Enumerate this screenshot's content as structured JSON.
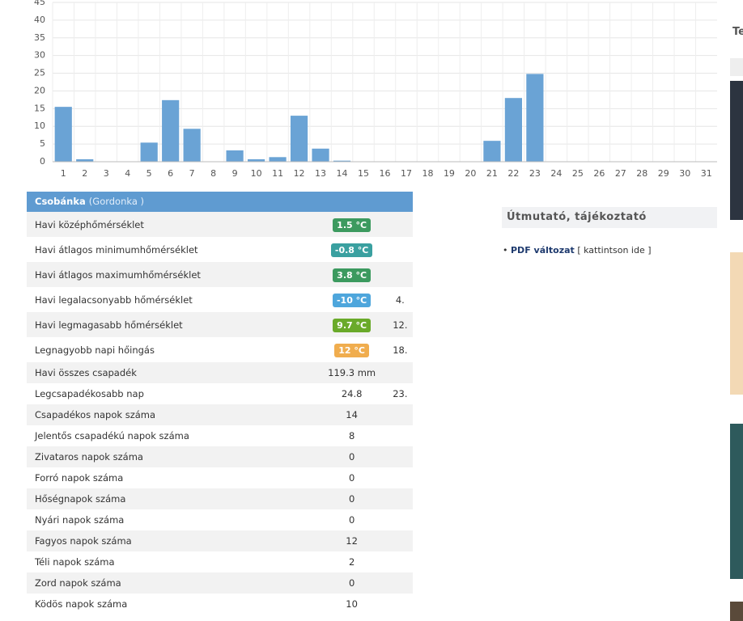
{
  "chart_data": {
    "type": "bar",
    "categories": [
      "1",
      "2",
      "3",
      "4",
      "5",
      "6",
      "7",
      "8",
      "9",
      "10",
      "11",
      "12",
      "13",
      "14",
      "15",
      "16",
      "17",
      "18",
      "19",
      "20",
      "21",
      "22",
      "23",
      "24",
      "25",
      "26",
      "27",
      "28",
      "29",
      "30",
      "31"
    ],
    "values": [
      15.5,
      0.7,
      0,
      0,
      5.4,
      17.4,
      9.3,
      0,
      3.2,
      0.7,
      1.3,
      13,
      3.7,
      0.3,
      0,
      0,
      0,
      0,
      0,
      0,
      5.9,
      18,
      24.8,
      0,
      0,
      0,
      0,
      0,
      0,
      0,
      0
    ],
    "color": "#6aa3d5",
    "ylim": [
      0,
      45
    ],
    "yticks": [
      0,
      5,
      10,
      15,
      20,
      25,
      30,
      35,
      40,
      45
    ],
    "grid": true
  },
  "table": {
    "station": "Csobánka",
    "area": "(Gordonka )",
    "rows": [
      [
        "Havi középhőmérséklet",
        "1.5 °C",
        null
      ],
      [
        "Havi átlagos minimumhőmérséklet",
        "-0.8 °C",
        null
      ],
      [
        "Havi átlagos maximumhőmérséklet",
        "3.8 °C",
        null
      ],
      [
        "Havi legalacsonyabb hőmérséklet",
        "-10 °C",
        "4."
      ],
      [
        "Havi legmagasabb hőmérséklet",
        "9.7 °C",
        "12."
      ],
      [
        "Legnagyobb napi hőingás",
        "12 °C",
        "18."
      ],
      [
        "Havi összes csapadék",
        "119.3 mm",
        null
      ],
      [
        "Legcsapadékosabb nap",
        "24.8",
        "23."
      ],
      [
        "Csapadékos napok száma",
        "14",
        null
      ],
      [
        "Jelentős csapadékú napok száma",
        "8",
        null
      ],
      [
        "Zivataros napok száma",
        "0",
        null
      ],
      [
        "Forró napok száma",
        "0",
        null
      ],
      [
        "Hőségnapok száma",
        "0",
        null
      ],
      [
        "Nyári napok száma",
        "0",
        null
      ],
      [
        "Fagyos napok száma",
        "12",
        null
      ],
      [
        "Téli napok száma",
        "2",
        null
      ],
      [
        "Zord napok száma",
        "0",
        null
      ],
      [
        "Ködös napok száma",
        "10",
        null
      ]
    ]
  },
  "info": {
    "title": "Útmutató, tájékoztató",
    "link": "PDF változat",
    "hint": "[ kattintson ide ]"
  },
  "sidebar": {
    "title": "Te"
  }
}
